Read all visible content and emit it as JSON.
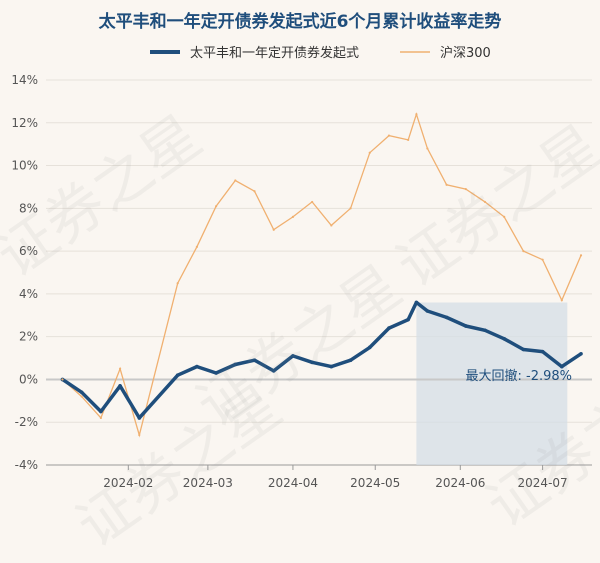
{
  "watermark": "证券之星",
  "chart_data": {
    "type": "line",
    "title": "太平丰和一年定开债券发起式近6个月累计收益率走势",
    "x": [
      "2024-01-08",
      "2024-01-15",
      "2024-01-22",
      "2024-01-29",
      "2024-02-05",
      "2024-02-19",
      "2024-02-26",
      "2024-03-04",
      "2024-03-11",
      "2024-03-18",
      "2024-03-25",
      "2024-04-01",
      "2024-04-08",
      "2024-04-15",
      "2024-04-22",
      "2024-04-29",
      "2024-05-06",
      "2024-05-13",
      "2024-05-16",
      "2024-05-20",
      "2024-05-27",
      "2024-06-03",
      "2024-06-10",
      "2024-06-17",
      "2024-06-24",
      "2024-07-01",
      "2024-07-08",
      "2024-07-15"
    ],
    "x_ticks": [
      "2024-02",
      "2024-03",
      "2024-04",
      "2024-05",
      "2024-06",
      "2024-07"
    ],
    "x_tick_dates": [
      "2024-02-01",
      "2024-03-01",
      "2024-04-01",
      "2024-05-01",
      "2024-06-01",
      "2024-07-01"
    ],
    "y_ticks": [
      "14%",
      "12%",
      "10%",
      "8%",
      "6%",
      "4%",
      "2%",
      "0%",
      "-2%",
      "-4%"
    ],
    "y_tick_values": [
      14,
      12,
      10,
      8,
      6,
      4,
      2,
      0,
      -2,
      -4
    ],
    "ylim": [
      -4,
      14
    ],
    "xlim": [
      "2024-01-02",
      "2024-07-19"
    ],
    "series": [
      {
        "name": "太平丰和一年定开债券发起式",
        "color": "#1f4e7c",
        "values": [
          0,
          -0.6,
          -1.5,
          -0.3,
          -1.8,
          0.2,
          0.6,
          0.3,
          0.7,
          0.9,
          0.4,
          1.1,
          0.8,
          0.6,
          0.9,
          1.5,
          2.4,
          2.8,
          3.6,
          3.2,
          2.9,
          2.5,
          2.3,
          1.9,
          1.4,
          1.3,
          0.6,
          1.2
        ]
      },
      {
        "name": "沪深300",
        "color": "#f0b070",
        "values": [
          0,
          -0.8,
          -1.8,
          0.5,
          -2.6,
          4.5,
          6.2,
          8.1,
          9.3,
          8.8,
          7.0,
          7.6,
          8.3,
          7.2,
          8.0,
          10.6,
          11.4,
          11.2,
          12.4,
          10.8,
          9.1,
          8.9,
          8.3,
          7.6,
          6.0,
          5.6,
          3.7,
          5.8
        ]
      }
    ],
    "max_drawdown_label": "最大回撤: -2.98%",
    "drawdown_start": "2024-05-16",
    "drawdown_end": "2024-07-10",
    "legend_position": "top-center"
  }
}
